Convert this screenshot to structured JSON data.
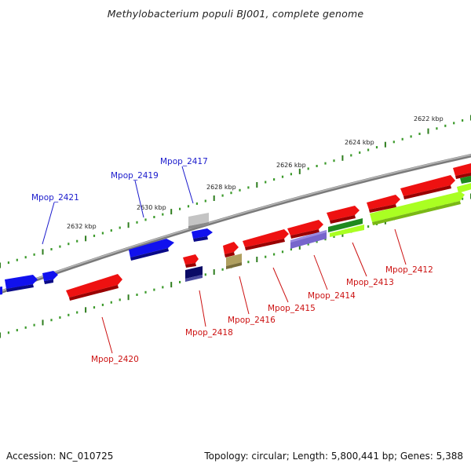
{
  "title": "Methylobacterium populi BJ001, complete genome",
  "footer": {
    "accession": "Accession: NC_010725",
    "summary": "Topology: circular; Length: 5,800,441 bp; Genes: 5,388"
  },
  "colors": {
    "backbone": "#8a8a8a",
    "tick": "#2e7d1e",
    "upper_label": "#1a1acc",
    "lower_label": "#cc1111"
  },
  "kbp_labels": [
    "2622 kbp",
    "2624 kbp",
    "2626 kbp",
    "2628 kbp",
    "2630 kbp",
    "2632 kbp"
  ],
  "genes_upper": [
    {
      "label": "Mpop_2417",
      "color": "#1a1acc"
    },
    {
      "label": "Mpop_2419",
      "color": "#1a1acc"
    },
    {
      "label": "Mpop_2421",
      "color": "#1a1acc"
    }
  ],
  "genes_lower": [
    {
      "label": "Mpop_2412",
      "color": "#cc1111"
    },
    {
      "label": "Mpop_2413",
      "color": "#cc1111"
    },
    {
      "label": "Mpop_2414",
      "color": "#cc1111"
    },
    {
      "label": "Mpop_2415",
      "color": "#cc1111"
    },
    {
      "label": "Mpop_2416",
      "color": "#cc1111"
    },
    {
      "label": "Mpop_2418",
      "color": "#cc1111"
    },
    {
      "label": "Mpop_2420",
      "color": "#cc1111"
    }
  ],
  "feature_colors": {
    "red": "#ee1111",
    "blue": "#1111ee",
    "navy": "#0a0a66",
    "lavender": "#7766cc",
    "green": "#1f8a1f",
    "lime": "#aaff22",
    "olive": "#b0a060",
    "grey": "#c4c4c4"
  }
}
